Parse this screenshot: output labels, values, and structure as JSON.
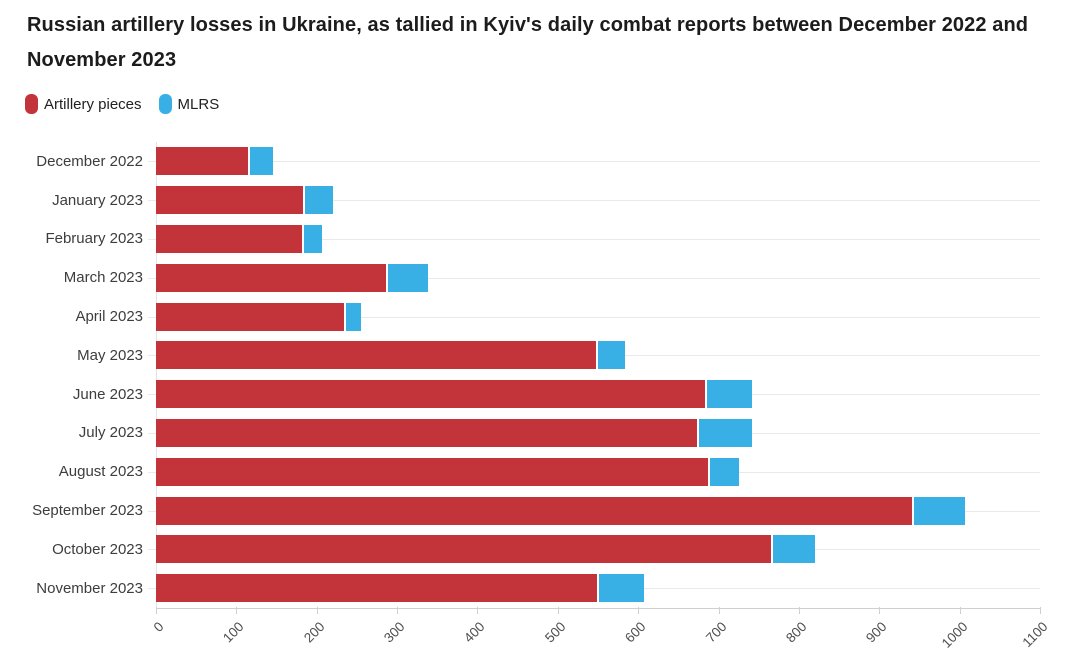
{
  "title": "Russian artillery losses in Ukraine, as tallied in Kyiv's daily combat reports between December 2022 and November 2023",
  "chart_data": {
    "type": "bar",
    "orientation": "horizontal",
    "stacked": true,
    "title": "Russian artillery losses in Ukraine, as tallied in Kyiv's daily combat reports between December 2022 and November 2023",
    "categories": [
      "December 2022",
      "January 2023",
      "February 2023",
      "March 2023",
      "April 2023",
      "May 2023",
      "June 2023",
      "July 2023",
      "August 2023",
      "September 2023",
      "October 2023",
      "November 2023"
    ],
    "series": [
      {
        "name": "Artillery pieces",
        "color": "#c2343a",
        "values": [
          117,
          185,
          184,
          289,
          237,
          550,
          686,
          676,
          689,
          943,
          768,
          551
        ]
      },
      {
        "name": "MLRS",
        "color": "#38afe5",
        "values": [
          29,
          35,
          23,
          50,
          18,
          34,
          56,
          66,
          36,
          64,
          52,
          56
        ]
      }
    ],
    "xlabel": "",
    "ylabel": "",
    "xlim": [
      0,
      1100
    ],
    "xticks": [
      0,
      100,
      200,
      300,
      400,
      500,
      600,
      700,
      800,
      900,
      1000,
      1100
    ],
    "grid": "horizontal-row-lines",
    "legend_position": "top-left"
  },
  "colors": {
    "artillery": "#c2343a",
    "mlrs": "#38afe5",
    "title_text": "#1c1c1c",
    "label_text": "#3d3d3d",
    "tick_text": "#4f4f4f",
    "gridline": "#e9e9e9",
    "axis_line": "#cfcfcf",
    "background": "#ffffff"
  }
}
